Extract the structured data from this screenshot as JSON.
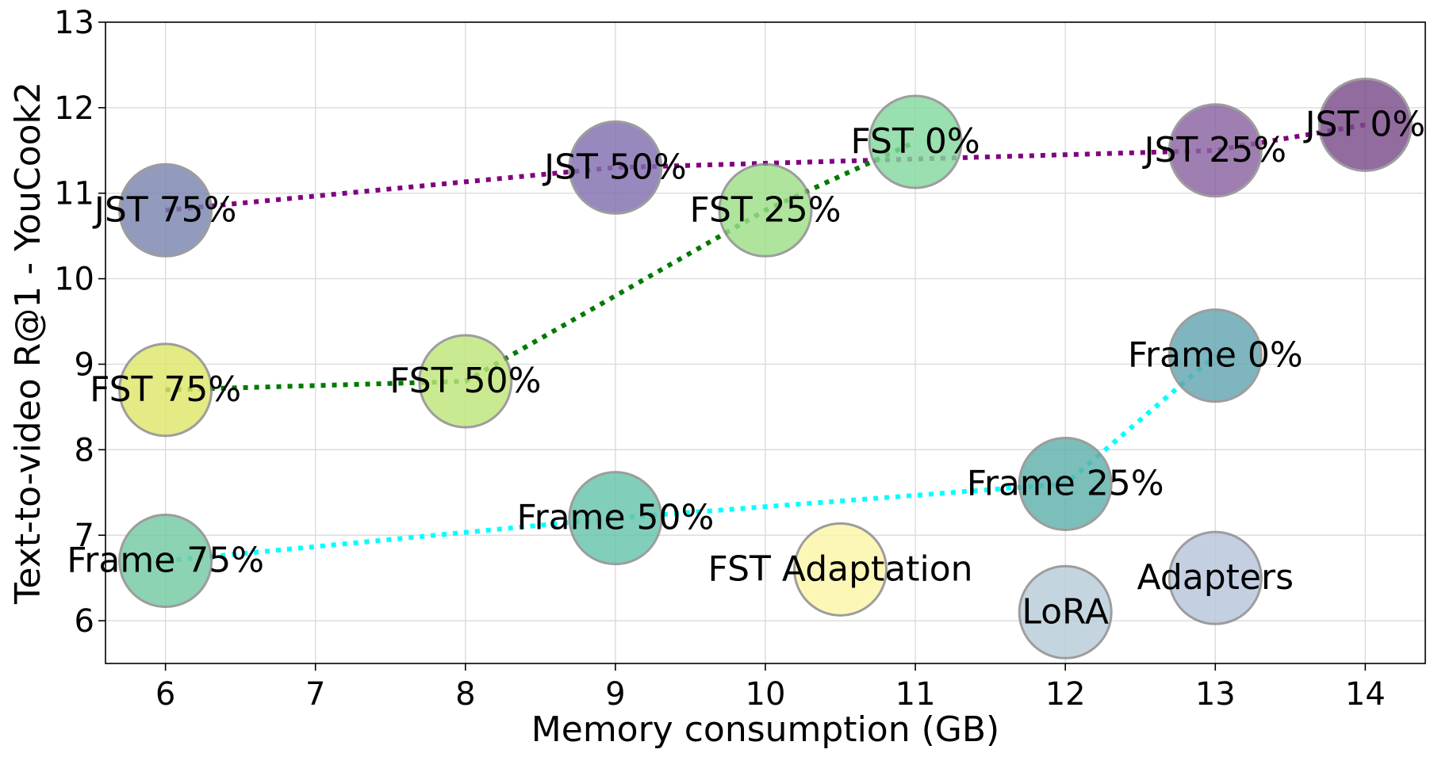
{
  "chart_data": {
    "type": "scatter",
    "xlabel": "Memory consumption (GB)",
    "ylabel": "Text-to-video R@1 - YouCook2",
    "xlim": [
      5.6,
      14.4
    ],
    "ylim": [
      5.5,
      13
    ],
    "xticks": [
      6,
      7,
      8,
      9,
      10,
      11,
      12,
      13,
      14
    ],
    "yticks": [
      6,
      7,
      8,
      9,
      10,
      11,
      12,
      13
    ],
    "grid": true,
    "points": [
      {
        "label": "JST 0%",
        "x": 14,
        "y": 11.8,
        "color": "#7b4b8a"
      },
      {
        "label": "JST 25%",
        "x": 13,
        "y": 11.5,
        "color": "#8a62a0"
      },
      {
        "label": "JST 50%",
        "x": 9,
        "y": 11.3,
        "color": "#8170b0"
      },
      {
        "label": "JST 75%",
        "x": 6,
        "y": 10.8,
        "color": "#7b84b0"
      },
      {
        "label": "FST 0%",
        "x": 11,
        "y": 11.6,
        "color": "#84d89e"
      },
      {
        "label": "FST 25%",
        "x": 10,
        "y": 10.8,
        "color": "#9edf88"
      },
      {
        "label": "FST 50%",
        "x": 8,
        "y": 8.8,
        "color": "#bfe67a"
      },
      {
        "label": "FST 75%",
        "x": 6,
        "y": 8.7,
        "color": "#dfe66a"
      },
      {
        "label": "Frame 0%",
        "x": 13,
        "y": 9.1,
        "color": "#64a6b0"
      },
      {
        "label": "Frame 25%",
        "x": 12,
        "y": 7.6,
        "color": "#5fb0ac"
      },
      {
        "label": "Frame 50%",
        "x": 9,
        "y": 7.2,
        "color": "#66c4ad"
      },
      {
        "label": "Frame 75%",
        "x": 6,
        "y": 6.7,
        "color": "#72caa3"
      },
      {
        "label": "FST Adaptation",
        "x": 10.5,
        "y": 6.6,
        "color": "#fdf6a8"
      },
      {
        "label": "LoRA",
        "x": 12,
        "y": 6.1,
        "color": "#b9cdd9"
      },
      {
        "label": "Adapters",
        "x": 13,
        "y": 6.5,
        "color": "#b8c6dc"
      }
    ],
    "lines": [
      {
        "color": "#800080",
        "points": [
          [
            6,
            10.8
          ],
          [
            9,
            11.3
          ],
          [
            13,
            11.5
          ],
          [
            14,
            11.8
          ]
        ]
      },
      {
        "color": "#007a00",
        "points": [
          [
            6,
            8.7
          ],
          [
            8,
            8.8
          ],
          [
            10,
            10.8
          ],
          [
            11,
            11.6
          ]
        ]
      },
      {
        "color": "#00ffff",
        "points": [
          [
            6,
            6.7
          ],
          [
            9,
            7.2
          ],
          [
            12,
            7.6
          ],
          [
            13,
            9.1
          ]
        ]
      }
    ]
  }
}
